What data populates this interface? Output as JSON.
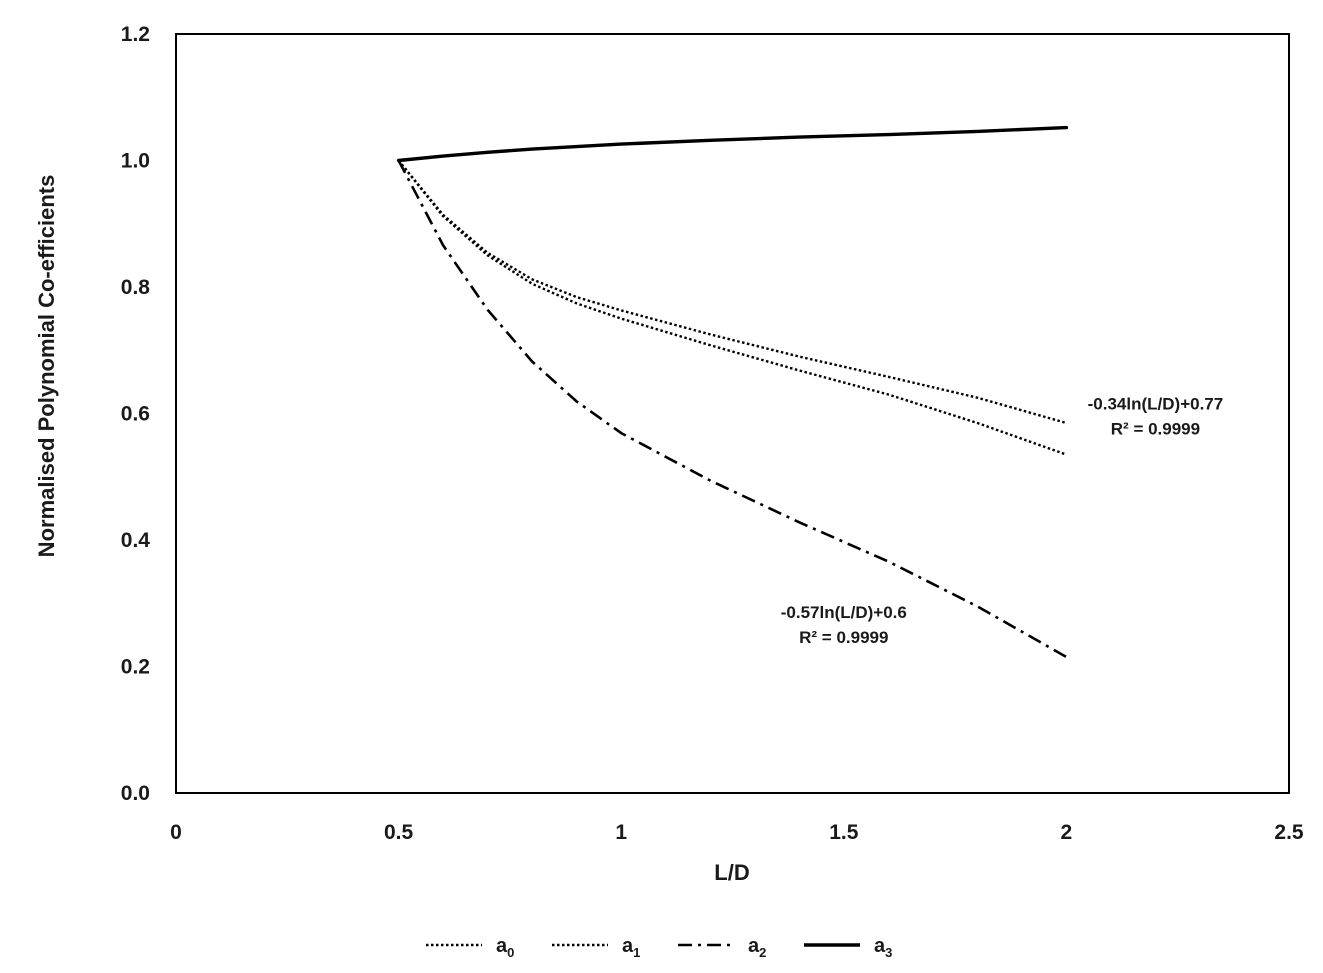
{
  "chart_data": {
    "type": "line",
    "title": "",
    "xlabel": "L/D",
    "ylabel": "Normalised Polynomial Co-efficients",
    "xlim": [
      0,
      2.5
    ],
    "ylim": [
      0.0,
      1.2
    ],
    "x_ticks": [
      "0",
      "0.5",
      "1",
      "1.5",
      "2",
      "2.5"
    ],
    "y_ticks": [
      "0.0",
      "0.2",
      "0.4",
      "0.6",
      "0.8",
      "1.0",
      "1.2"
    ],
    "grid": false,
    "legend_position": "bottom",
    "series": [
      {
        "name": "a",
        "subscript": "0",
        "style": "dotted",
        "x": [
          0.5,
          0.6,
          0.7,
          0.8,
          0.9,
          1.0,
          1.2,
          1.4,
          1.6,
          1.8,
          2.0
        ],
        "y": [
          1.0,
          0.914,
          0.854,
          0.812,
          0.784,
          0.763,
          0.725,
          0.69,
          0.658,
          0.625,
          0.585
        ]
      },
      {
        "name": "a",
        "subscript": "1",
        "style": "dotted",
        "x": [
          0.5,
          0.6,
          0.7,
          0.8,
          0.9,
          1.0,
          1.2,
          1.4,
          1.6,
          1.8,
          2.0
        ],
        "y": [
          1.0,
          0.912,
          0.85,
          0.805,
          0.774,
          0.75,
          0.708,
          0.668,
          0.63,
          0.585,
          0.535
        ]
      },
      {
        "name": "a",
        "subscript": "2",
        "style": "dash-dot",
        "x": [
          0.5,
          0.6,
          0.7,
          0.8,
          0.9,
          1.0,
          1.2,
          1.4,
          1.6,
          1.8,
          2.0
        ],
        "y": [
          1.0,
          0.866,
          0.764,
          0.682,
          0.619,
          0.569,
          0.494,
          0.428,
          0.366,
          0.295,
          0.215
        ]
      },
      {
        "name": "a",
        "subscript": "3",
        "style": "solid",
        "x": [
          0.5,
          0.6,
          0.7,
          0.8,
          0.9,
          1.0,
          1.2,
          1.4,
          1.6,
          1.8,
          2.0
        ],
        "y": [
          1.0,
          1.007,
          1.013,
          1.018,
          1.022,
          1.026,
          1.032,
          1.037,
          1.041,
          1.046,
          1.052
        ]
      }
    ],
    "annotations": [
      {
        "line1": "-0.34ln(L/D)+0.77",
        "line2": "R² = 0.9999",
        "x": 2.2,
        "y": 0.6
      },
      {
        "line1": "-0.57ln(L/D)+0.6",
        "line2": "R² = 0.9999",
        "x": 1.5,
        "y": 0.27
      }
    ]
  }
}
